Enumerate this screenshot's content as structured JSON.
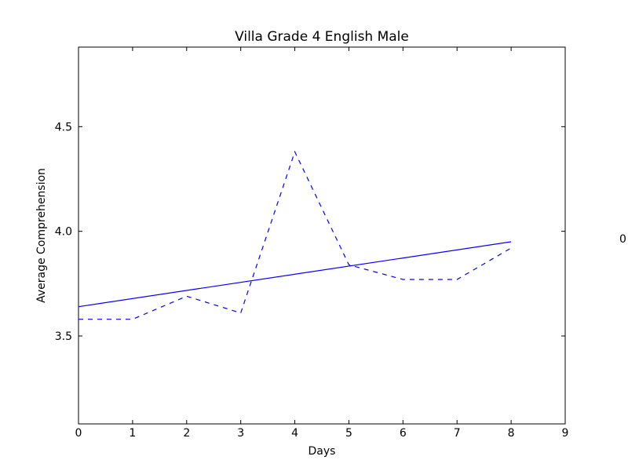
{
  "chart_data": {
    "type": "line",
    "title": "Villa Grade 4 English Male",
    "xlabel": "Days",
    "ylabel": "Average Comprehension",
    "xlim": [
      0,
      9
    ],
    "ylim": [
      3.08,
      4.88
    ],
    "xticks": [
      "0",
      "1",
      "2",
      "3",
      "4",
      "5",
      "6",
      "7",
      "8",
      "9"
    ],
    "yticks": [
      "3.5",
      "4.0",
      "4.5"
    ],
    "grid": false,
    "side_annotation": "0",
    "series": [
      {
        "style": "dashed",
        "color": "#0000ff",
        "x": [
          0,
          1,
          2,
          3,
          4,
          5,
          6,
          7,
          8
        ],
        "y": [
          3.58,
          3.58,
          3.69,
          3.61,
          4.38,
          3.84,
          3.77,
          3.77,
          3.92
        ]
      },
      {
        "style": "solid",
        "color": "#0000ff",
        "x": [
          0,
          8
        ],
        "y": [
          3.64,
          3.95
        ]
      }
    ]
  }
}
